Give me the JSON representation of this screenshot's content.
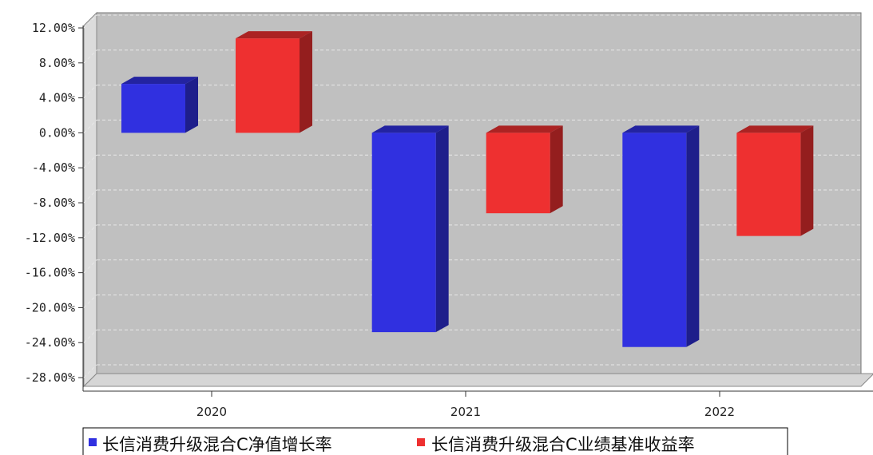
{
  "chart_data": {
    "type": "bar",
    "title": "",
    "xlabel": "",
    "ylabel": "",
    "categories": [
      "2020",
      "2021",
      "2022"
    ],
    "series": [
      {
        "name": "长信消费升级混合C净值增长率",
        "color": "#3030e0",
        "values": [
          5.6,
          -22.8,
          -24.5
        ]
      },
      {
        "name": "长信消费升级混合C业绩基准收益率",
        "color": "#ee3030",
        "values": [
          10.8,
          -9.2,
          -11.8
        ]
      }
    ],
    "ylim": [
      -29,
      12
    ],
    "yticks": [
      "12.00%",
      "8.00%",
      "4.00%",
      "0.00%",
      "-4.00%",
      "-8.00%",
      "-12.00%",
      "-16.00%",
      "-20.00%",
      "-24.00%",
      "-28.00%"
    ],
    "grid": true,
    "legend_position": "bottom",
    "colors": {
      "plot_background": "#c0c0c0",
      "wall_side": "#dcdcdc",
      "grid": "#e8e8e8"
    }
  }
}
